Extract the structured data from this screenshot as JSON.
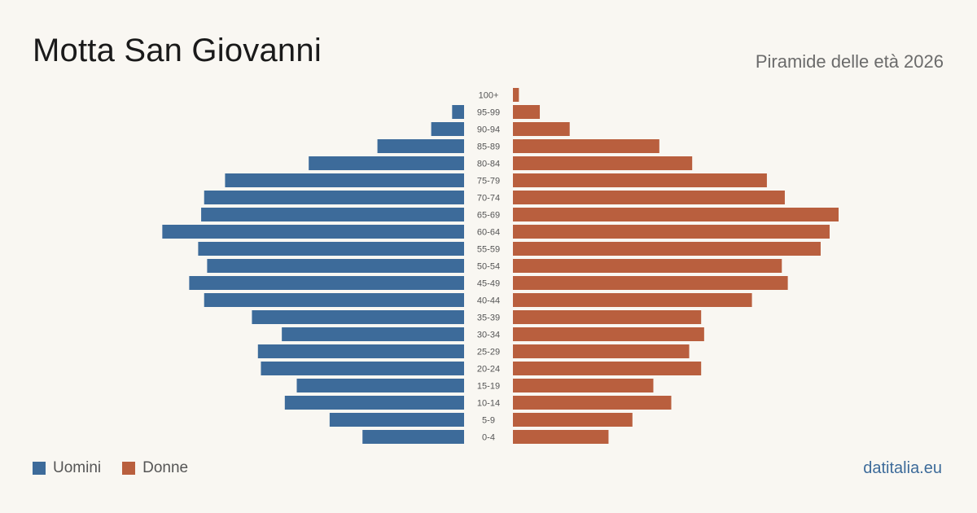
{
  "header": {
    "title": "Motta San Giovanni",
    "subtitle": "Piramide delle età 2026"
  },
  "legend": {
    "men_label": "Uomini",
    "women_label": "Donne"
  },
  "footer": {
    "source": "datitalia.eu"
  },
  "colors": {
    "men": "#3d6b9a",
    "women": "#b95f3e",
    "background": "#f9f7f2"
  },
  "chart_data": {
    "type": "bar",
    "orientation": "horizontal-pyramid",
    "categories": [
      "100+",
      "95-99",
      "90-94",
      "85-89",
      "80-84",
      "75-79",
      "70-74",
      "65-69",
      "60-64",
      "55-59",
      "50-54",
      "45-49",
      "40-44",
      "35-39",
      "30-34",
      "25-29",
      "20-24",
      "15-19",
      "10-14",
      "5-9",
      "0-4"
    ],
    "series": [
      {
        "name": "Uomini",
        "values": [
          0,
          4,
          11,
          29,
          52,
          80,
          87,
          88,
          101,
          89,
          86,
          92,
          87,
          71,
          61,
          69,
          68,
          56,
          60,
          45,
          34
        ]
      },
      {
        "name": "Donne",
        "values": [
          2,
          9,
          19,
          49,
          60,
          85,
          91,
          109,
          106,
          103,
          90,
          92,
          80,
          63,
          64,
          59,
          63,
          47,
          53,
          40,
          32
        ]
      }
    ]
  }
}
